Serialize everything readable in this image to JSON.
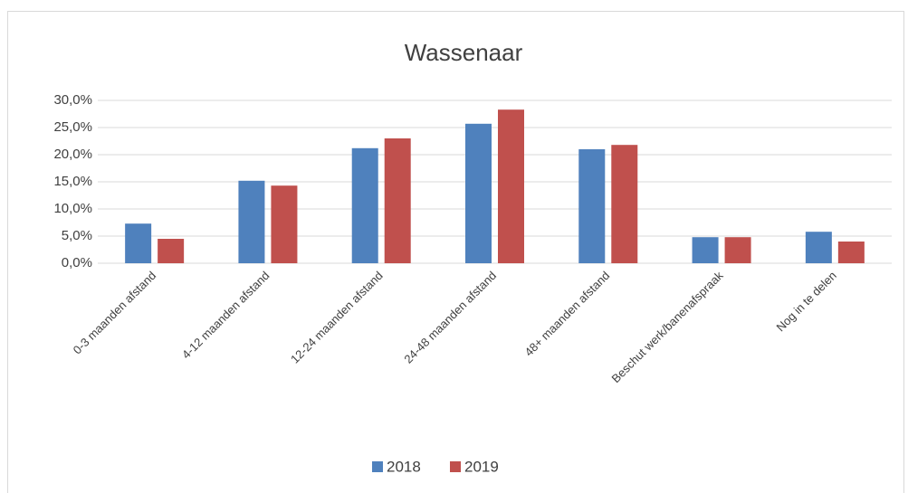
{
  "chart_data": {
    "type": "bar",
    "title": "Wassenaar",
    "categories": [
      "0-3 maanden afstand",
      "4-12 maanden afstand",
      "12-24 maanden afstand",
      "24-48 maanden afstand",
      "48+ maanden afstand",
      "Beschut werk/banenafspraak",
      "Nog in te delen"
    ],
    "series": [
      {
        "name": "2018",
        "color": "#4f81bd",
        "values": [
          7.3,
          15.2,
          21.2,
          25.7,
          21.0,
          4.8,
          5.8
        ]
      },
      {
        "name": "2019",
        "color": "#c0504d",
        "values": [
          4.5,
          14.3,
          23.0,
          28.3,
          21.8,
          4.8,
          4.0
        ]
      }
    ],
    "ylim": [
      0,
      30
    ],
    "yticks": [
      {
        "value": 0,
        "label": "0,0%"
      },
      {
        "value": 5,
        "label": "5,0%"
      },
      {
        "value": 10,
        "label": "10,0%"
      },
      {
        "value": 15,
        "label": "15,0%"
      },
      {
        "value": 20,
        "label": "20,0%"
      },
      {
        "value": 25,
        "label": "25,0%"
      },
      {
        "value": 30,
        "label": "30,0%"
      }
    ],
    "grid": true,
    "legend": "bottom"
  }
}
